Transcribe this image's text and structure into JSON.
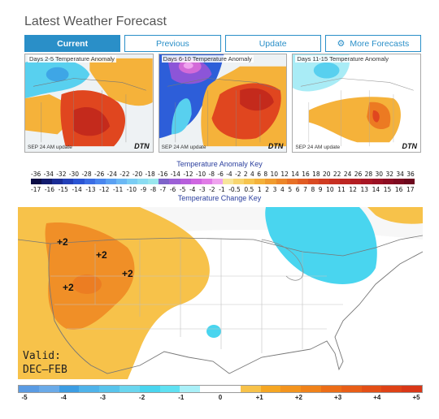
{
  "header": {
    "title": "Latest Weather Forecast"
  },
  "buttons": [
    {
      "label": "Current",
      "active": true
    },
    {
      "label": "Previous",
      "active": false
    },
    {
      "label": "Update",
      "active": false
    },
    {
      "label": "More Forecasts",
      "active": false,
      "icon": "gear-icon"
    }
  ],
  "mini_maps": [
    {
      "caption": "Days  2-5  Temperature  Anomaly",
      "stamp": "SEP  24  AM  update",
      "brand": "DTN"
    },
    {
      "caption": "Days  6-10  Temperature  Anomaly",
      "stamp": "SEP  24  AM  update",
      "brand": "DTN"
    },
    {
      "caption": "Days  11-15  Temperature  Anomaly",
      "stamp": "SEP  24  AM  update",
      "brand": "DTN"
    }
  ],
  "key": {
    "anomaly_title": "Temperature Anomaly Key",
    "anomaly_values": [
      "-36",
      "-34",
      "-32",
      "-30",
      "-28",
      "-26",
      "-24",
      "-22",
      "-20",
      "-18",
      "-16",
      "-14",
      "-12",
      "-10",
      "-8",
      "-6",
      "-4",
      "-2",
      "2",
      "4",
      "6",
      "8",
      "10",
      "12",
      "14",
      "16",
      "18",
      "20",
      "22",
      "24",
      "26",
      "28",
      "30",
      "32",
      "34",
      "36"
    ],
    "change_values": [
      "-17",
      "-16",
      "-15",
      "-14",
      "-13",
      "-12",
      "-11",
      "-10",
      "-9",
      "-8",
      "-7",
      "-6",
      "-5",
      "-4",
      "-3",
      "-2",
      "-1",
      "-0.5",
      "0.5",
      "1",
      "2",
      "3",
      "4",
      "5",
      "6",
      "7",
      "8",
      "9",
      "10",
      "11",
      "12",
      "13",
      "14",
      "15",
      "16",
      "17"
    ],
    "change_title": "Temperature Change Key",
    "colors": [
      "#0b0d45",
      "#131c6e",
      "#1b2d96",
      "#2340b8",
      "#2b55d4",
      "#3b6de4",
      "#4a86ee",
      "#5aa0f2",
      "#6bb8f4",
      "#7acdf4",
      "#8adcf2",
      "#9ae6ee",
      "#7e63c9",
      "#9c60d6",
      "#b75fdc",
      "#cf66e1",
      "#e07be6",
      "#efa3ee",
      "#f7e59a",
      "#f7d56f",
      "#f6c44e",
      "#f3b13a",
      "#f09c2f",
      "#ec8629",
      "#e77026",
      "#e15c23",
      "#d94a22",
      "#d03c22",
      "#c73022",
      "#bd2622",
      "#b31d22",
      "#a81624",
      "#9b1124",
      "#8c0d22",
      "#7d0a20",
      "#6c081d"
    ]
  },
  "big_map": {
    "anomaly_labels": [
      "+2",
      "+2",
      "+2",
      "+2"
    ],
    "valid_label": "Valid:",
    "valid_period": "DEC—FEB"
  },
  "legend": {
    "colors": [
      "#5a9be3",
      "#6aaae8",
      "#3c9de3",
      "#4fb3ea",
      "#58c4ec",
      "#6ad6ef",
      "#49d5ef",
      "#5fe1f2",
      "#a9f0f8",
      "#ffffff",
      "#ffffff",
      "#f7c24a",
      "#f5a623",
      "#f3941e",
      "#f0821a",
      "#ec6d17",
      "#e85e17",
      "#e34f16",
      "#de4216",
      "#d93717"
    ],
    "ticks": [
      "-5",
      "-4",
      "-3",
      "-2",
      "-1",
      "0",
      "+1",
      "+2",
      "+3",
      "+4",
      "+5"
    ]
  }
}
